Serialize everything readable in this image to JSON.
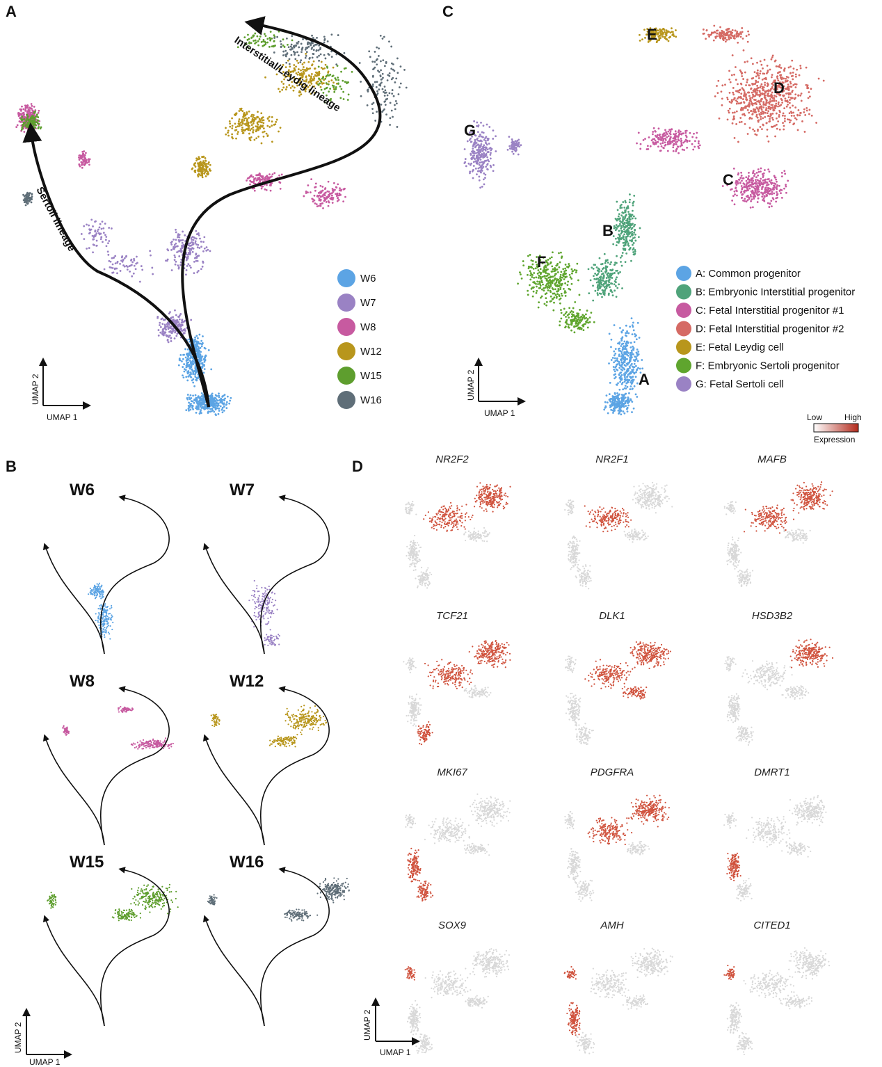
{
  "panel_labels": {
    "a": "A",
    "b": "B",
    "c": "C",
    "d": "D"
  },
  "axis_labels": {
    "x": "UMAP 1",
    "y": "UMAP 2"
  },
  "lineages": {
    "sertoli": "Sertoli lineage",
    "leydig": "Interstitial/Leydig lineage"
  },
  "colorbar": {
    "low": "Low",
    "high": "High",
    "label": "Expression",
    "low_color": "#ffffff",
    "high_color": "#b32a1c"
  },
  "chart_data": [
    {
      "type": "scatter",
      "panel": "A",
      "xlabel": "UMAP 1",
      "ylabel": "UMAP 2",
      "series": [
        {
          "name": "W6",
          "color": "#5ca4e4"
        },
        {
          "name": "W7",
          "color": "#9a82c4"
        },
        {
          "name": "W8",
          "color": "#c75aa0"
        },
        {
          "name": "W12",
          "color": "#b8961c"
        },
        {
          "name": "W15",
          "color": "#5e9e2e"
        },
        {
          "name": "W16",
          "color": "#5f6e78"
        }
      ]
    },
    {
      "type": "scatter",
      "panel": "B",
      "facets": [
        {
          "title": "W6",
          "color": "#5ca4e4"
        },
        {
          "title": "W7",
          "color": "#9a82c4"
        },
        {
          "title": "W8",
          "color": "#c75aa0"
        },
        {
          "title": "W12",
          "color": "#b8961c"
        },
        {
          "title": "W15",
          "color": "#5e9e2e"
        },
        {
          "title": "W16",
          "color": "#5f6e78"
        }
      ]
    },
    {
      "type": "scatter",
      "panel": "C",
      "xlabel": "UMAP 1",
      "ylabel": "UMAP 2",
      "series": [
        {
          "letter": "A",
          "name": "A: Common progenitor",
          "color": "#5ca4e4"
        },
        {
          "letter": "B",
          "name": "B: Embryonic Interstitial progenitor",
          "color": "#4fa37a"
        },
        {
          "letter": "C",
          "name": "C: Fetal Interstitial progenitor #1",
          "color": "#c75aa0"
        },
        {
          "letter": "D",
          "name": "D: Fetal Interstitial progenitor #2",
          "color": "#d56a64"
        },
        {
          "letter": "E",
          "name": "E: Fetal Leydig cell",
          "color": "#b8961c"
        },
        {
          "letter": "F",
          "name": "F: Embryonic Sertoli progenitor",
          "color": "#5fa52e"
        },
        {
          "letter": "G",
          "name": "G: Fetal Sertoli cell",
          "color": "#9a82c4"
        }
      ]
    },
    {
      "type": "scatter",
      "panel": "D",
      "legend": "Expression Low-High",
      "genes": [
        "NR2F2",
        "NR2F1",
        "MAFB",
        "TCF21",
        "DLK1",
        "HSD3B2",
        "MKI67",
        "PDGFRA",
        "DMRT1",
        "SOX9",
        "AMH",
        "CITED1"
      ]
    }
  ]
}
